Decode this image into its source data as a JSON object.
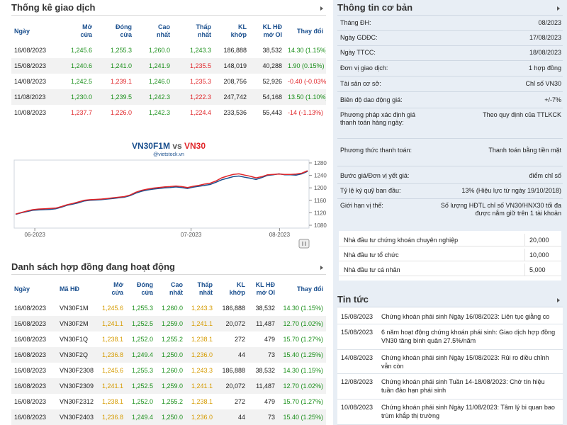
{
  "stats": {
    "title": "Thống kê giao dịch",
    "headers": [
      "Ngày",
      "Mở cửa",
      "Đóng cửa",
      "Cao nhất",
      "Thấp nhất",
      "KL khớp",
      "KL HĐ mở OI",
      "Thay đổi"
    ],
    "header_lines": [
      [
        "Ngày"
      ],
      [
        "Mở",
        "cửa"
      ],
      [
        "Đóng",
        "cửa"
      ],
      [
        "Cao",
        "nhất"
      ],
      [
        "Thấp",
        "nhất"
      ],
      [
        "KL",
        "khớp"
      ],
      [
        "KL HĐ",
        "mở OI"
      ],
      [
        "Thay đổi"
      ]
    ],
    "rows": [
      {
        "date": "16/08/2023",
        "open": "1,245.6",
        "close": "1,255.3",
        "high": "1,260.0",
        "low": "1,243.3",
        "vol": "186,888",
        "oi": "38,532",
        "change": "14.30 (1.15%)"
      },
      {
        "date": "15/08/2023",
        "open": "1,240.6",
        "close": "1,241.0",
        "high": "1,241.9",
        "low": "1,235.5",
        "vol": "148,019",
        "oi": "40,288",
        "change": "1.90 (0.15%)"
      },
      {
        "date": "14/08/2023",
        "open": "1,242.5",
        "close": "1,239.1",
        "high": "1,246.0",
        "low": "1,235.3",
        "vol": "208,756",
        "oi": "52,926",
        "change": "-0.40 (-0.03%)"
      },
      {
        "date": "11/08/2023",
        "open": "1,230.0",
        "close": "1,239.5",
        "high": "1,242.3",
        "low": "1,222.3",
        "vol": "247,742",
        "oi": "54,168",
        "change": "13.50 (1.10%)"
      },
      {
        "date": "10/08/2023",
        "open": "1,237.7",
        "close": "1,226.0",
        "high": "1,242.3",
        "low": "1,224.4",
        "vol": "233,536",
        "oi": "55,443",
        "change": "-14 (-1.13%)"
      }
    ],
    "row_colors": [
      [
        "up",
        "up",
        "up",
        "up",
        "up"
      ],
      [
        "up",
        "up",
        "up",
        "down",
        "up"
      ],
      [
        "up",
        "down",
        "up",
        "down",
        "down"
      ],
      [
        "up",
        "up",
        "up",
        "down",
        "up"
      ],
      [
        "down",
        "down",
        "up",
        "down",
        "down"
      ]
    ]
  },
  "chart": {
    "title_series1": "VN30F1M",
    "title_vs": "vs",
    "title_series2": "VN30",
    "subtitle": "@vietstock.vn",
    "y_ticks": [
      "1280",
      "1240",
      "1200",
      "1160",
      "1120",
      "1080"
    ],
    "x_ticks": [
      "06-2023",
      "07-2023",
      "08-2023"
    ]
  },
  "chart_data": {
    "type": "line",
    "title": "VN30F1M vs VN30",
    "ylim": [
      1080,
      1280
    ],
    "y_ticks": [
      1080,
      1120,
      1160,
      1200,
      1240,
      1280
    ],
    "x_ticks": [
      "06-2023",
      "07-2023",
      "08-2023"
    ],
    "grid": false,
    "series": [
      {
        "name": "VN30F1M",
        "color": "#1a4f8e",
        "values": [
          1115,
          1120,
          1124,
          1128,
          1129,
          1130,
          1131,
          1133,
          1138,
          1144,
          1148,
          1152,
          1158,
          1160,
          1161,
          1162,
          1164,
          1166,
          1168,
          1170,
          1175,
          1183,
          1189,
          1193,
          1196,
          1198,
          1200,
          1201,
          1203,
          1201,
          1198,
          1202,
          1205,
          1208,
          1211,
          1218,
          1226,
          1231,
          1236,
          1238,
          1234,
          1231,
          1227,
          1233,
          1240,
          1242,
          1245,
          1242,
          1242,
          1241,
          1245,
          1253
        ]
      },
      {
        "name": "VN30",
        "color": "#e0262a",
        "values": [
          1116,
          1121,
          1126,
          1130,
          1132,
          1133,
          1134,
          1135,
          1140,
          1146,
          1150,
          1155,
          1160,
          1162,
          1163,
          1164,
          1166,
          1168,
          1170,
          1172,
          1177,
          1186,
          1192,
          1196,
          1199,
          1201,
          1203,
          1204,
          1206,
          1204,
          1201,
          1205,
          1208,
          1212,
          1215,
          1222,
          1232,
          1238,
          1243,
          1245,
          1241,
          1237,
          1232,
          1236,
          1242,
          1243,
          1244,
          1243,
          1243,
          1244,
          1247,
          1255
        ]
      }
    ]
  },
  "contracts": {
    "title": "Danh sách hợp đồng đang hoạt động",
    "headers": [
      "Ngày",
      "Mã HĐ",
      "Mở cửa",
      "Đóng cửa",
      "Cao nhất",
      "Thấp nhất",
      "KL khớp",
      "KL HĐ mở OI",
      "Thay đổi"
    ],
    "header_lines": [
      [
        "Ngày"
      ],
      [
        "Mã HĐ"
      ],
      [
        "Mở",
        "cửa"
      ],
      [
        "Đóng",
        "cửa"
      ],
      [
        "Cao",
        "nhất"
      ],
      [
        "Thấp",
        "nhất"
      ],
      [
        "KL",
        "khớp"
      ],
      [
        "KL HĐ",
        "mở OI"
      ],
      [
        "Thay đổi"
      ]
    ],
    "rows": [
      {
        "date": "16/08/2023",
        "code": "VN30F1M",
        "open": "1,245.6",
        "close": "1,255.3",
        "high": "1,260.0",
        "low": "1,243.3",
        "vol": "186,888",
        "oi": "38,532",
        "change": "14.30 (1.15%)"
      },
      {
        "date": "16/08/2023",
        "code": "VN30F2M",
        "open": "1,241.1",
        "close": "1,252.5",
        "high": "1,259.0",
        "low": "1,241.1",
        "vol": "20,072",
        "oi": "11,487",
        "change": "12.70 (1.02%)"
      },
      {
        "date": "16/08/2023",
        "code": "VN30F1Q",
        "open": "1,238.1",
        "close": "1,252.0",
        "high": "1,255.2",
        "low": "1,238.1",
        "vol": "272",
        "oi": "479",
        "change": "15.70 (1.27%)"
      },
      {
        "date": "16/08/2023",
        "code": "VN30F2Q",
        "open": "1,236.8",
        "close": "1,249.4",
        "high": "1,250.0",
        "low": "1,236.0",
        "vol": "44",
        "oi": "73",
        "change": "15.40 (1.25%)"
      },
      {
        "date": "16/08/2023",
        "code": "VN30F2308",
        "open": "1,245.6",
        "close": "1,255.3",
        "high": "1,260.0",
        "low": "1,243.3",
        "vol": "186,888",
        "oi": "38,532",
        "change": "14.30 (1.15%)"
      },
      {
        "date": "16/08/2023",
        "code": "VN30F2309",
        "open": "1,241.1",
        "close": "1,252.5",
        "high": "1,259.0",
        "low": "1,241.1",
        "vol": "20,072",
        "oi": "11,487",
        "change": "12.70 (1.02%)"
      },
      {
        "date": "16/08/2023",
        "code": "VN30F2312",
        "open": "1,238.1",
        "close": "1,252.0",
        "high": "1,255.2",
        "low": "1,238.1",
        "vol": "272",
        "oi": "479",
        "change": "15.70 (1.27%)"
      },
      {
        "date": "16/08/2023",
        "code": "VN30F2403",
        "open": "1,236.8",
        "close": "1,249.4",
        "high": "1,250.0",
        "low": "1,236.0",
        "vol": "44",
        "oi": "73",
        "change": "15.40 (1.25%)"
      }
    ]
  },
  "basic_info": {
    "title": "Thông tin cơ bản",
    "rows": [
      {
        "k": "Tháng ĐH:",
        "v": "08/2023"
      },
      {
        "k": "Ngày GDĐC:",
        "v": "17/08/2023"
      },
      {
        "k": "Ngày TTCC:",
        "v": "18/08/2023"
      },
      {
        "k": "Đơn vị giao dịch:",
        "v": "1 hợp đồng"
      },
      {
        "k": "Tài sản cơ sở:",
        "v": "Chỉ số VN30"
      },
      {
        "k": "Biên độ dao động giá:",
        "v": "+/-7%"
      },
      {
        "k": "Phương pháp xác định giá thanh toán hàng ngày:",
        "v": "Theo quy định của TTLKCK"
      },
      {
        "k": "Phương thức thanh toán:",
        "v": "Thanh toán bằng tiền mặt"
      },
      {
        "k": "Bước giá/Đơn vị yết giá:",
        "v": "điểm chỉ số"
      },
      {
        "k": "Tỷ lệ ký quỹ ban đầu:",
        "v": "13% (Hiệu lực từ ngày 19/10/2018)"
      },
      {
        "k": "Giới hạn vị thế:",
        "v": "Số lượng HĐTL chỉ số VN30/HNX30 tối đa được nắm giữ trên 1 tài khoản"
      }
    ],
    "investors": [
      {
        "k": "Nhà đầu tư chứng khoán chuyên nghiệp",
        "v": "20,000"
      },
      {
        "k": "Nhà đầu tư tổ chức",
        "v": "10,000"
      },
      {
        "k": "Nhà đầu tư cá nhân",
        "v": "5,000"
      }
    ]
  },
  "news": {
    "title": "Tin tức",
    "items": [
      {
        "date": "15/08/2023",
        "title": "Chứng khoán phái sinh Ngày 16/08/2023: Liên tục giằng co"
      },
      {
        "date": "15/08/2023",
        "title": "6 năm hoạt động chứng khoán phái sinh: Giao dịch hợp đồng VN30 tăng bình quân 27.5%/năm"
      },
      {
        "date": "14/08/2023",
        "title": "Chứng khoán phái sinh Ngày 15/08/2023: Rủi ro điều chỉnh vẫn còn"
      },
      {
        "date": "12/08/2023",
        "title": "Chứng khoán phái sinh Tuần 14-18/08/2023: Chờ tín hiệu tuần đảo hạn phái sinh"
      },
      {
        "date": "10/08/2023",
        "title": "Chứng khoán phái sinh Ngày 11/08/2023: Tâm lý bi quan bao trùm khắp thị trường"
      }
    ]
  },
  "colors": {
    "header_blue": "#1a4f8e",
    "up": "#1a8f1a",
    "down": "#e0262a",
    "panel_bg": "#e8eef5"
  }
}
